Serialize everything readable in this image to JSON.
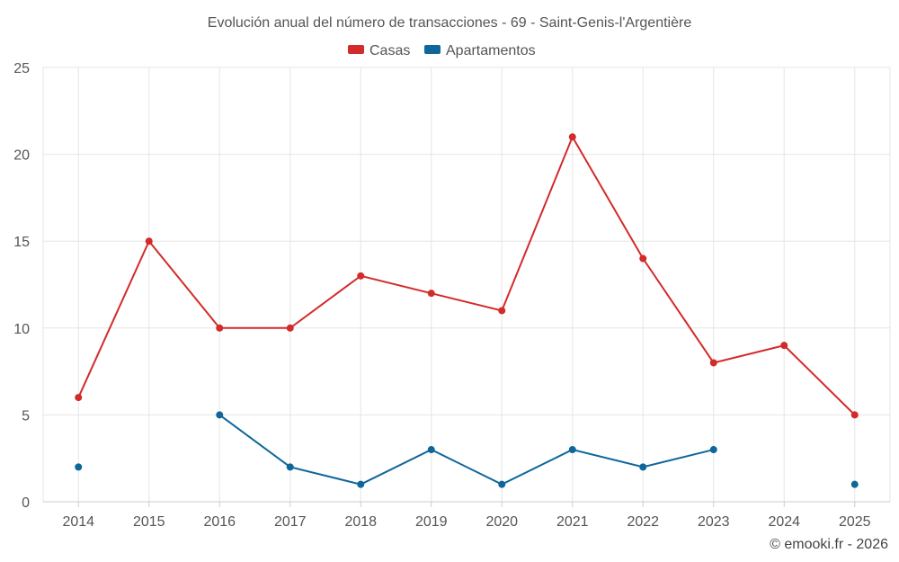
{
  "chart_data": {
    "type": "line",
    "title": "Evolución anual del número de transacciones - 69 - Saint-Genis-l'Argentière",
    "categories": [
      "2014",
      "2015",
      "2016",
      "2017",
      "2018",
      "2019",
      "2020",
      "2021",
      "2022",
      "2023",
      "2024",
      "2025"
    ],
    "ylim": [
      0,
      25
    ],
    "yticks": [
      0,
      5,
      10,
      15,
      20,
      25
    ],
    "xlabel": "",
    "ylabel": "",
    "grid": true,
    "legend_position": "top-center",
    "series": [
      {
        "name": "Casas",
        "color": "#d32a2a",
        "values": [
          6,
          15,
          10,
          10,
          13,
          12,
          11,
          21,
          14,
          8,
          9,
          5
        ]
      },
      {
        "name": "Apartamentos",
        "color": "#0e6699",
        "values": [
          2,
          null,
          5,
          2,
          1,
          3,
          1,
          3,
          2,
          3,
          null,
          1
        ]
      }
    ],
    "credit": "© emooki.fr - 2026"
  }
}
